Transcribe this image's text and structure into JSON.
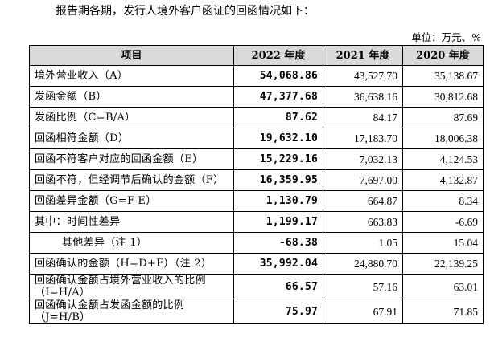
{
  "intro": "报告期各期，发行人境外客户函证的回函情况如下：",
  "unit": "单位：万元、%",
  "header": {
    "item": "项目",
    "y2022": "2022 年度",
    "y2021": "2021 年度",
    "y2020": "2020 年度"
  },
  "rows": [
    {
      "label": "境外营业收入（A）",
      "v2022": "54,068.86",
      "v2021": "43,527.70",
      "v2020": "35,138.67"
    },
    {
      "label": "发函金额（B）",
      "v2022": "47,377.68",
      "v2021": "36,638.16",
      "v2020": "30,812.68"
    },
    {
      "label": "发函比例（C=B/A）",
      "v2022": "87.62",
      "v2021": "84.17",
      "v2020": "87.69"
    },
    {
      "label": "回函相符金额（D）",
      "v2022": "19,632.10",
      "v2021": "17,183.70",
      "v2020": "18,006.38"
    },
    {
      "label": "回函不符客户对应的回函金额（E）",
      "v2022": "15,229.16",
      "v2021": "7,032.13",
      "v2020": "4,124.53"
    },
    {
      "label": "回函不符，但经调节后确认的金额（F）",
      "v2022": "16,359.95",
      "v2021": "7,697.00",
      "v2020": "4,132.87"
    },
    {
      "label": "回函差异金额（G=F-E）",
      "v2022": "1,130.79",
      "v2021": "664.87",
      "v2020": "8.34"
    },
    {
      "label": "其中：时间性差异",
      "v2022": "1,199.17",
      "v2021": "663.83",
      "v2020": "-6.69"
    },
    {
      "label": "其他差异（注 1）",
      "v2022": "-68.38",
      "v2021": "1.05",
      "v2020": "15.04"
    },
    {
      "label": "回函确认的金额（H=D+F）（注 2）",
      "v2022": "35,992.04",
      "v2021": "24,880.70",
      "v2020": "22,139.25"
    },
    {
      "label": "回函确认金额占境外营业收入的比例（I=H/A）",
      "v2022": "66.57",
      "v2021": "57.16",
      "v2020": "63.01"
    },
    {
      "label": "回函确认金额占发函金额的比例（J=H/B）",
      "v2022": "75.97",
      "v2021": "67.91",
      "v2020": "71.85"
    }
  ]
}
